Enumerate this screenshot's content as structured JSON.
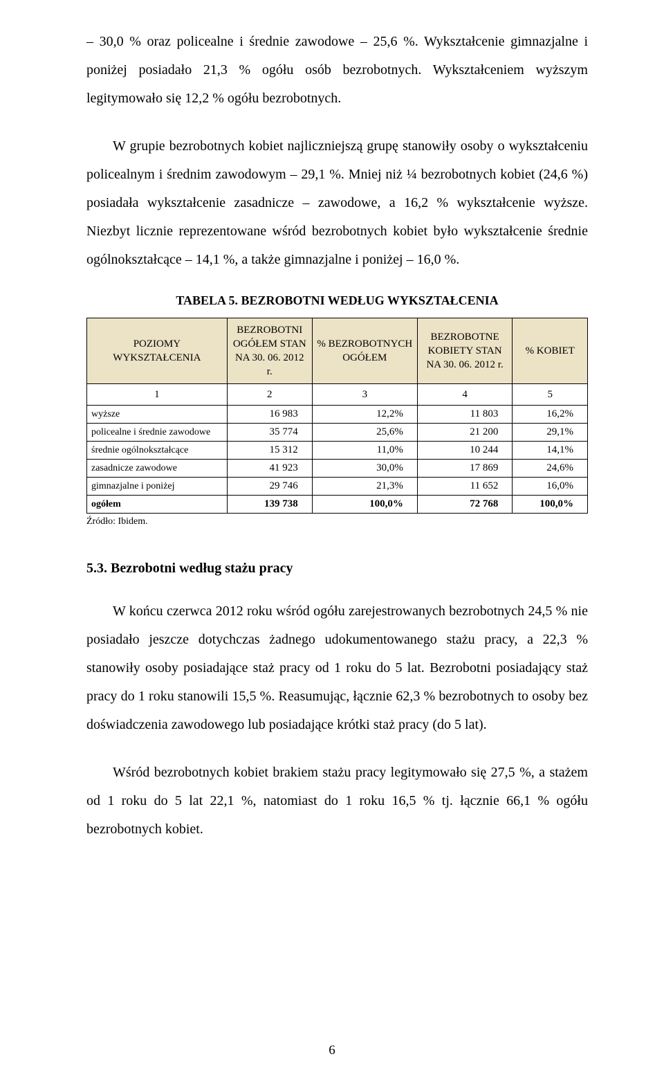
{
  "paragraph1": "– 30,0 % oraz policealne i średnie zawodowe – 25,6 %. Wykształcenie gimnazjalne i poniżej posiadało 21,3 % ogółu osób bezrobotnych. Wykształceniem wyższym legitymowało się 12,2 % ogółu bezrobotnych.",
  "paragraph2": "W grupie bezrobotnych kobiet najliczniejszą grupę stanowiły osoby o wykształceniu policealnym i średnim zawodowym – 29,1 %. Mniej niż ¼ bezrobotnych kobiet (24,6 %) posiadała wykształcenie zasadnicze – zawodowe, a 16,2 % wykształcenie wyższe. Niezbyt licznie reprezentowane wśród bezrobotnych kobiet było wykształcenie średnie ogólnokształcące – 14,1 %, a także gimnazjalne i poniżej – 16,0 %.",
  "table5": {
    "caption": "TABELA 5. BEZROBOTNI WEDŁUG WYKSZTAŁCENIA",
    "headers": [
      "POZIOMY WYKSZTAŁCENIA",
      "BEZROBOTNI OGÓŁEM STAN NA 30. 06. 2012 r.",
      "% BEZROBOTNYCH OGÓŁEM",
      "BEZROBOTNE KOBIETY STAN NA 30. 06. 2012 r.",
      "% KOBIET"
    ],
    "numrow": [
      "1",
      "2",
      "3",
      "4",
      "5"
    ],
    "rows": [
      {
        "label": "wyższe",
        "c2": "16 983",
        "c3": "12,2%",
        "c4": "11 803",
        "c5": "16,2%"
      },
      {
        "label": "policealne i średnie zawodowe",
        "c2": "35 774",
        "c3": "25,6%",
        "c4": "21 200",
        "c5": "29,1%"
      },
      {
        "label": "średnie ogólnokształcące",
        "c2": "15 312",
        "c3": "11,0%",
        "c4": "10 244",
        "c5": "14,1%"
      },
      {
        "label": "zasadnicze zawodowe",
        "c2": "41 923",
        "c3": "30,0%",
        "c4": "17 869",
        "c5": "24,6%"
      },
      {
        "label": "gimnazjalne i poniżej",
        "c2": "29 746",
        "c3": "21,3%",
        "c4": "11 652",
        "c5": "16,0%"
      }
    ],
    "total": {
      "label": "ogółem",
      "c2": "139 738",
      "c3": "100,0%",
      "c4": "72 768",
      "c5": "100,0%"
    },
    "source": "Źródło: Ibidem."
  },
  "section53": {
    "heading": "5.3. Bezrobotni według stażu pracy",
    "p1": "W końcu czerwca 2012 roku wśród ogółu zarejestrowanych bezrobotnych 24,5 % nie posiadało jeszcze dotychczas żadnego udokumentowanego stażu pracy, a 22,3 % stanowiły osoby posiadające staż pracy od 1 roku do 5 lat. Bezrobotni posiadający staż pracy do 1 roku stanowili 15,5 %. Reasumując, łącznie 62,3 % bezrobotnych to osoby bez doświadczenia zawodowego lub posiadające krótki staż pracy (do 5 lat).",
    "p2": "Wśród bezrobotnych kobiet brakiem stażu pracy legitymowało się 27,5 %, a stażem od 1 roku do 5 lat 22,1 %, natomiast do 1 roku 16,5 % tj. łącznie 66,1 % ogółu bezrobotnych kobiet."
  },
  "page_number": "6"
}
